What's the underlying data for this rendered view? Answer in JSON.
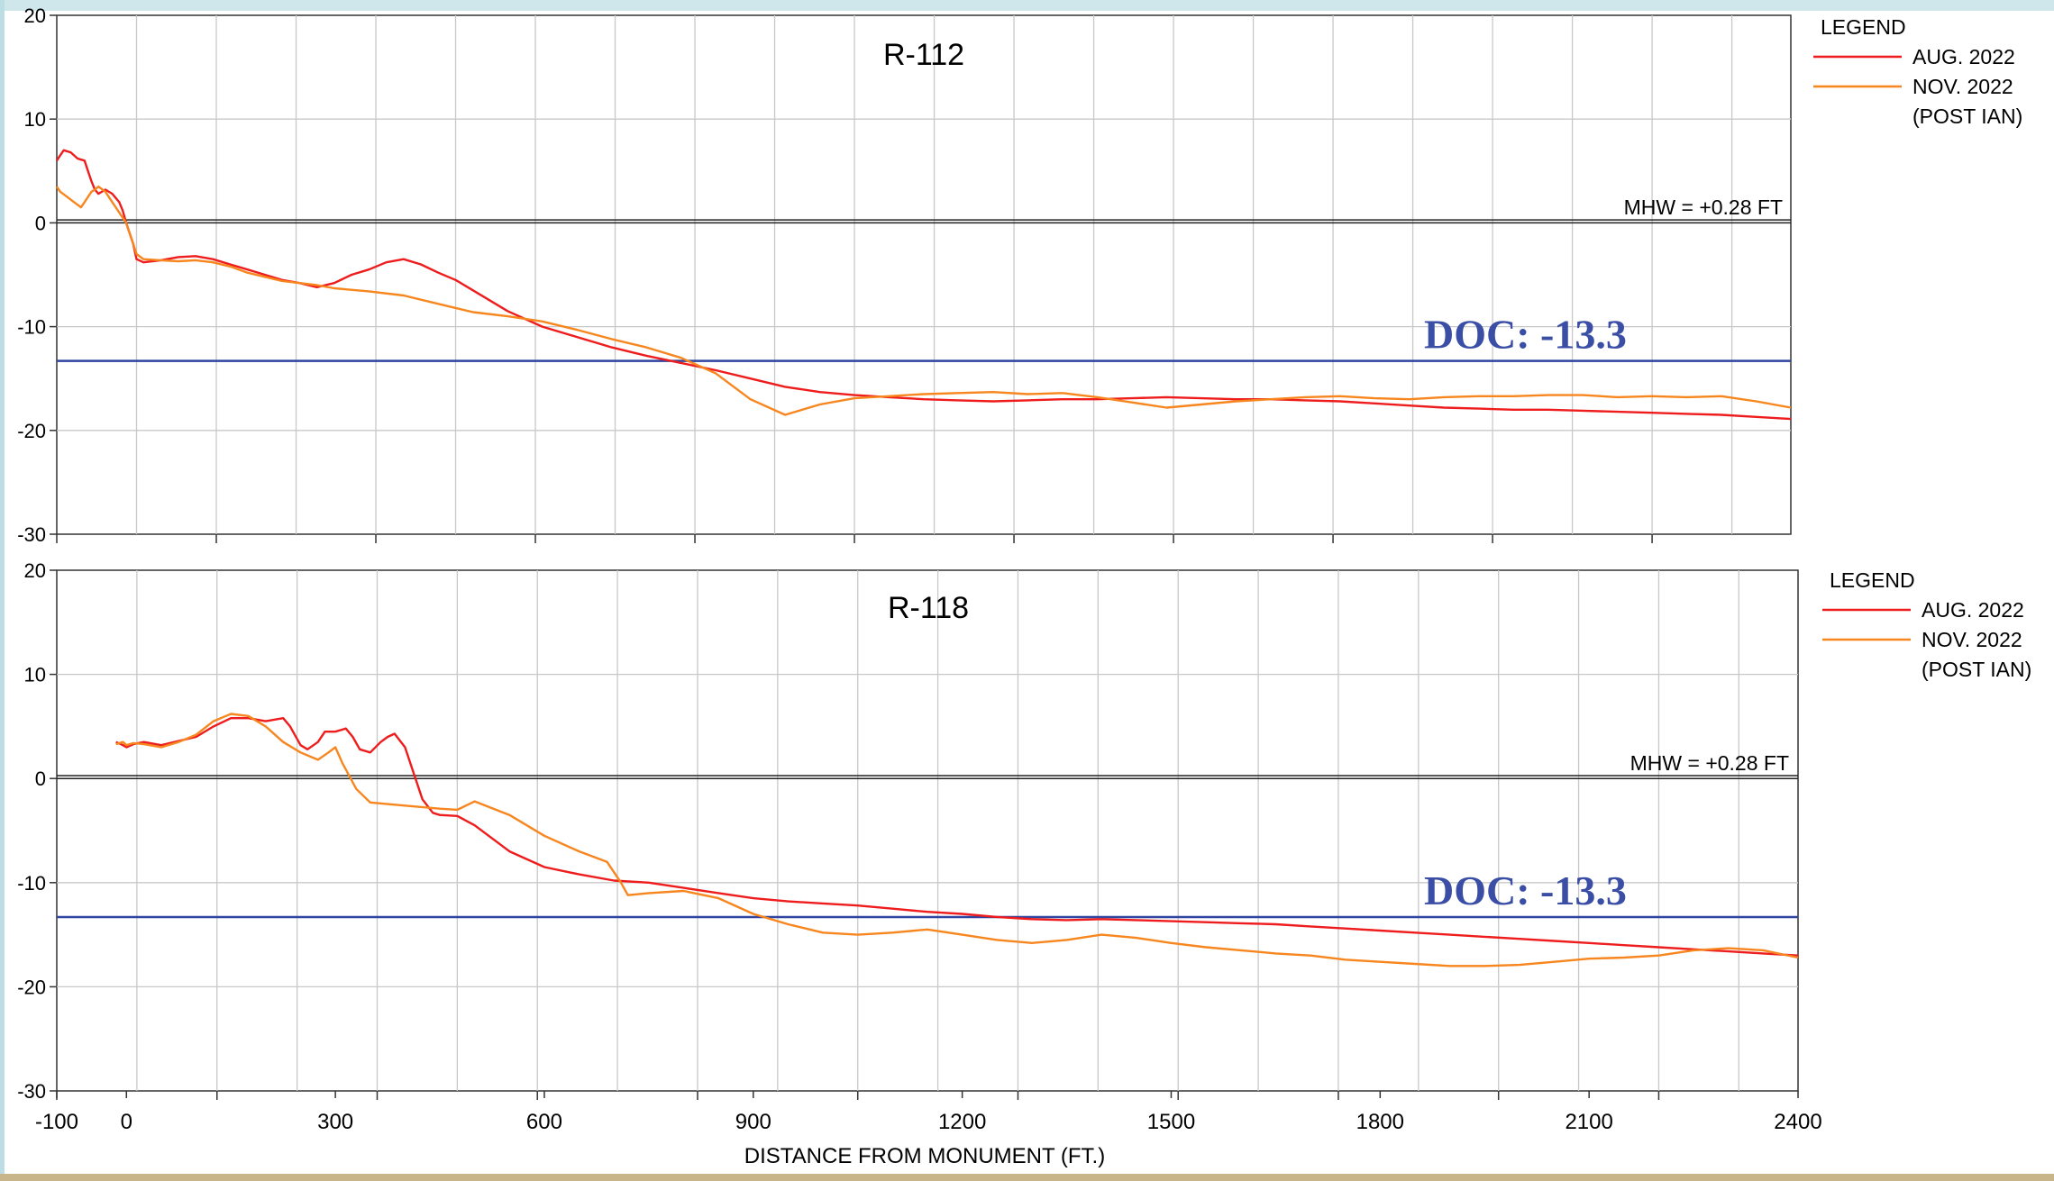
{
  "chart_data": [
    {
      "type": "line",
      "title": "R-112",
      "ylim": [
        -30,
        20
      ],
      "xlim": [
        -100,
        2400
      ],
      "x_ticks": [],
      "y_ticks": [
        20,
        10,
        0,
        -10,
        -20,
        -30
      ],
      "grid": true,
      "legend": {
        "title": "LEGEND",
        "placement": "right",
        "entries": [
          "AUG. 2022",
          "NOV. 2022",
          "(POST IAN)"
        ]
      },
      "annotations": {
        "mhw_label": "MHW = +0.28 FT",
        "mhw_value": 0.28,
        "doc_label": "DOC: -13.3",
        "doc_value": -13.3
      },
      "series": [
        {
          "name": "AUG. 2022",
          "color": "#ee1c1c",
          "x": [
            -100,
            -95,
            -90,
            -80,
            -75,
            -70,
            -60,
            -55,
            -50,
            -45,
            -40,
            -30,
            -20,
            -10,
            -5,
            0,
            10,
            15,
            25,
            50,
            75,
            100,
            125,
            150,
            175,
            200,
            225,
            250,
            275,
            300,
            325,
            350,
            375,
            400,
            425,
            450,
            475,
            500,
            550,
            600,
            650,
            700,
            750,
            800,
            850,
            900,
            950,
            1000,
            1050,
            1100,
            1150,
            1200,
            1250,
            1300,
            1350,
            1400,
            1450,
            1500,
            1550,
            1600,
            1650,
            1700,
            1750,
            1800,
            1850,
            1900,
            1950,
            2000,
            2050,
            2100,
            2150,
            2200,
            2250,
            2300,
            2350,
            2400
          ],
          "y": [
            6,
            6.5,
            7,
            6.8,
            6.5,
            6.2,
            6,
            5,
            4,
            3.2,
            2.8,
            3.2,
            2.8,
            2,
            1.2,
            0,
            -2,
            -3.5,
            -3.8,
            -3.6,
            -3.3,
            -3.2,
            -3.5,
            -4,
            -4.5,
            -5,
            -5.5,
            -5.8,
            -6.2,
            -5.8,
            -5,
            -4.5,
            -3.8,
            -3.5,
            -4,
            -4.8,
            -5.5,
            -6.5,
            -8.5,
            -10,
            -11,
            -12,
            -12.8,
            -13.5,
            -14.2,
            -15,
            -15.8,
            -16.3,
            -16.6,
            -16.8,
            -17,
            -17.1,
            -17.2,
            -17.1,
            -17,
            -17,
            -16.9,
            -16.8,
            -16.9,
            -17,
            -17,
            -17.1,
            -17.2,
            -17.4,
            -17.6,
            -17.8,
            -17.9,
            -18,
            -18,
            -18.1,
            -18.2,
            -18.3,
            -18.4,
            -18.5,
            -18.7,
            -18.9
          ]
        },
        {
          "name": "NOV. 2022",
          "color": "#f7861e",
          "x": [
            -100,
            -95,
            -85,
            -75,
            -65,
            -60,
            -55,
            -50,
            -45,
            -40,
            -30,
            -20,
            -10,
            -5,
            0,
            10,
            15,
            25,
            50,
            75,
            100,
            125,
            150,
            175,
            200,
            225,
            250,
            275,
            300,
            350,
            400,
            450,
            500,
            550,
            600,
            650,
            700,
            750,
            800,
            850,
            900,
            950,
            1000,
            1050,
            1100,
            1150,
            1200,
            1250,
            1300,
            1350,
            1400,
            1450,
            1500,
            1550,
            1600,
            1650,
            1700,
            1750,
            1800,
            1850,
            1900,
            1950,
            2000,
            2050,
            2100,
            2150,
            2200,
            2250,
            2300,
            2350,
            2400
          ],
          "y": [
            3.5,
            3,
            2.5,
            2,
            1.5,
            2,
            2.5,
            3,
            3.2,
            3.5,
            3,
            2,
            1,
            0.5,
            0,
            -2,
            -3,
            -3.5,
            -3.6,
            -3.7,
            -3.6,
            -3.8,
            -4.2,
            -4.8,
            -5.2,
            -5.6,
            -5.8,
            -6,
            -6.3,
            -6.6,
            -7,
            -7.8,
            -8.6,
            -9,
            -9.5,
            -10.3,
            -11.2,
            -12,
            -13,
            -14.5,
            -17,
            -18.5,
            -17.5,
            -16.9,
            -16.7,
            -16.5,
            -16.4,
            -16.3,
            -16.5,
            -16.4,
            -16.8,
            -17.3,
            -17.8,
            -17.5,
            -17.2,
            -17,
            -16.8,
            -16.7,
            -16.9,
            -17,
            -16.8,
            -16.7,
            -16.7,
            -16.6,
            -16.6,
            -16.8,
            -16.7,
            -16.8,
            -16.7,
            -17.2,
            -17.8
          ]
        }
      ]
    },
    {
      "type": "line",
      "title": "R-118",
      "ylim": [
        -30,
        20
      ],
      "xlim": [
        -100,
        2400
      ],
      "x_ticks": [
        -100,
        0,
        300,
        600,
        900,
        1200,
        1500,
        1800,
        2100,
        2400
      ],
      "y_ticks": [
        20,
        10,
        0,
        -10,
        -20,
        -30
      ],
      "grid": true,
      "xlabel": "DISTANCE FROM MONUMENT (FT.)",
      "legend": {
        "title": "LEGEND",
        "placement": "right",
        "entries": [
          "AUG. 2022",
          "NOV. 2022",
          "(POST IAN)"
        ]
      },
      "annotations": {
        "mhw_label": "MHW = +0.28 FT",
        "mhw_value": 0.28,
        "doc_label": "DOC: -13.3",
        "doc_value": -13.3
      },
      "series": [
        {
          "name": "AUG. 2022",
          "color": "#ee1c1c",
          "x": [
            -15,
            -5,
            0,
            10,
            25,
            50,
            75,
            100,
            125,
            150,
            175,
            200,
            225,
            235,
            250,
            260,
            275,
            285,
            300,
            315,
            325,
            335,
            350,
            365,
            375,
            385,
            400,
            410,
            425,
            440,
            450,
            475,
            500,
            550,
            600,
            650,
            700,
            750,
            800,
            850,
            900,
            950,
            1000,
            1050,
            1100,
            1150,
            1200,
            1250,
            1300,
            1350,
            1400,
            1450,
            1500,
            1550,
            1600,
            1650,
            1700,
            1750,
            1800,
            1850,
            1900,
            1950,
            2000,
            2050,
            2100,
            2150,
            2200,
            2250,
            2300,
            2350,
            2400
          ],
          "y": [
            3.5,
            3.2,
            3,
            3.3,
            3.5,
            3.2,
            3.6,
            4,
            5,
            5.8,
            5.8,
            5.5,
            5.8,
            5,
            3.2,
            2.8,
            3.5,
            4.5,
            4.5,
            4.8,
            4,
            2.8,
            2.5,
            3.5,
            4,
            4.3,
            3,
            1,
            -2,
            -3.3,
            -3.5,
            -3.6,
            -4.5,
            -7,
            -8.5,
            -9.2,
            -9.8,
            -10,
            -10.5,
            -11,
            -11.5,
            -11.8,
            -12,
            -12.2,
            -12.5,
            -12.8,
            -13,
            -13.3,
            -13.5,
            -13.6,
            -13.5,
            -13.6,
            -13.7,
            -13.8,
            -13.9,
            -14,
            -14.2,
            -14.4,
            -14.6,
            -14.8,
            -15,
            -15.2,
            -15.4,
            -15.6,
            -15.8,
            -16,
            -16.2,
            -16.4,
            -16.6,
            -16.8,
            -17
          ]
        },
        {
          "name": "NOV. 2022",
          "color": "#f7861e",
          "x": [
            -15,
            -5,
            0,
            10,
            25,
            50,
            75,
            100,
            125,
            150,
            175,
            200,
            225,
            250,
            275,
            290,
            300,
            310,
            330,
            350,
            400,
            450,
            475,
            500,
            550,
            600,
            650,
            690,
            710,
            720,
            750,
            800,
            850,
            900,
            950,
            1000,
            1050,
            1100,
            1150,
            1200,
            1250,
            1300,
            1350,
            1400,
            1450,
            1500,
            1550,
            1600,
            1650,
            1700,
            1750,
            1800,
            1850,
            1900,
            1950,
            2000,
            2050,
            2100,
            2150,
            2200,
            2250,
            2300,
            2350,
            2400
          ],
          "y": [
            3.3,
            3.5,
            3.2,
            3.4,
            3.3,
            3,
            3.5,
            4.2,
            5.5,
            6.2,
            6,
            5,
            3.5,
            2.5,
            1.8,
            2.5,
            3,
            1.5,
            -1,
            -2.3,
            -2.6,
            -2.9,
            -3,
            -2.2,
            -3.5,
            -5.5,
            -7,
            -8,
            -10,
            -11.2,
            -11,
            -10.8,
            -11.5,
            -13,
            -14,
            -14.8,
            -15,
            -14.8,
            -14.5,
            -15,
            -15.5,
            -15.8,
            -15.5,
            -15,
            -15.3,
            -15.8,
            -16.2,
            -16.5,
            -16.8,
            -17,
            -17.4,
            -17.6,
            -17.8,
            -18,
            -18,
            -17.9,
            -17.6,
            -17.3,
            -17.2,
            -17,
            -16.5,
            -16.3,
            -16.5,
            -17.2
          ]
        }
      ]
    }
  ]
}
